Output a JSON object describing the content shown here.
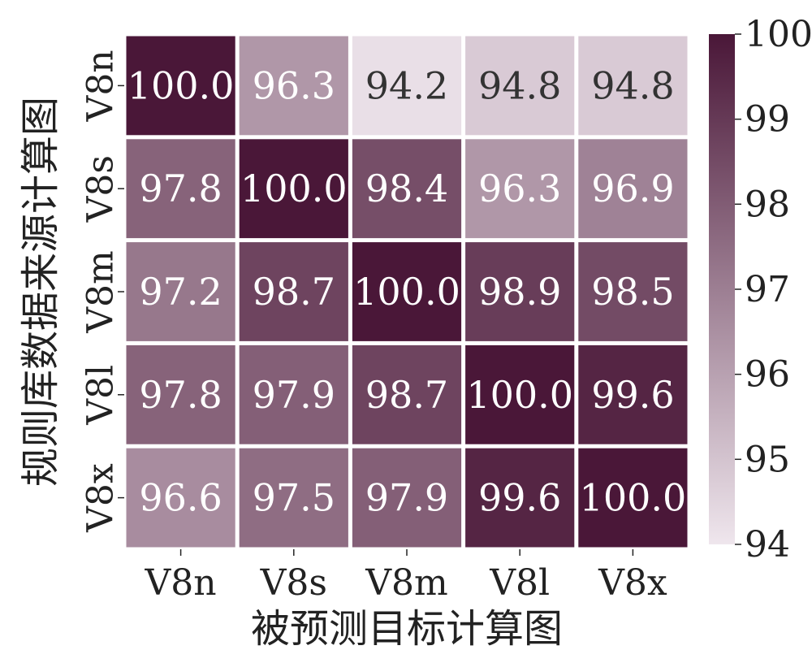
{
  "chart_data": {
    "type": "heatmap",
    "xlabel": "被预测目标计算图",
    "ylabel": "规则库数据来源计算图",
    "x_categories": [
      "V8n",
      "V8s",
      "V8m",
      "V8l",
      "V8x"
    ],
    "y_categories": [
      "V8n",
      "V8s",
      "V8m",
      "V8l",
      "V8x"
    ],
    "values": [
      [
        100.0,
        96.3,
        94.2,
        94.8,
        94.8
      ],
      [
        97.8,
        100.0,
        98.4,
        96.3,
        96.9
      ],
      [
        97.2,
        98.7,
        100.0,
        98.9,
        98.5
      ],
      [
        97.8,
        97.9,
        98.7,
        100.0,
        99.6
      ],
      [
        96.6,
        97.5,
        97.9,
        99.6,
        100.0
      ]
    ],
    "value_format": "0.0",
    "colorbar": {
      "min": 94,
      "max": 100,
      "ticks": [
        "94",
        "95",
        "96",
        "97",
        "98",
        "99",
        "100"
      ]
    },
    "colormap": {
      "low": "#efe6ed",
      "high": "#4a1738"
    }
  }
}
